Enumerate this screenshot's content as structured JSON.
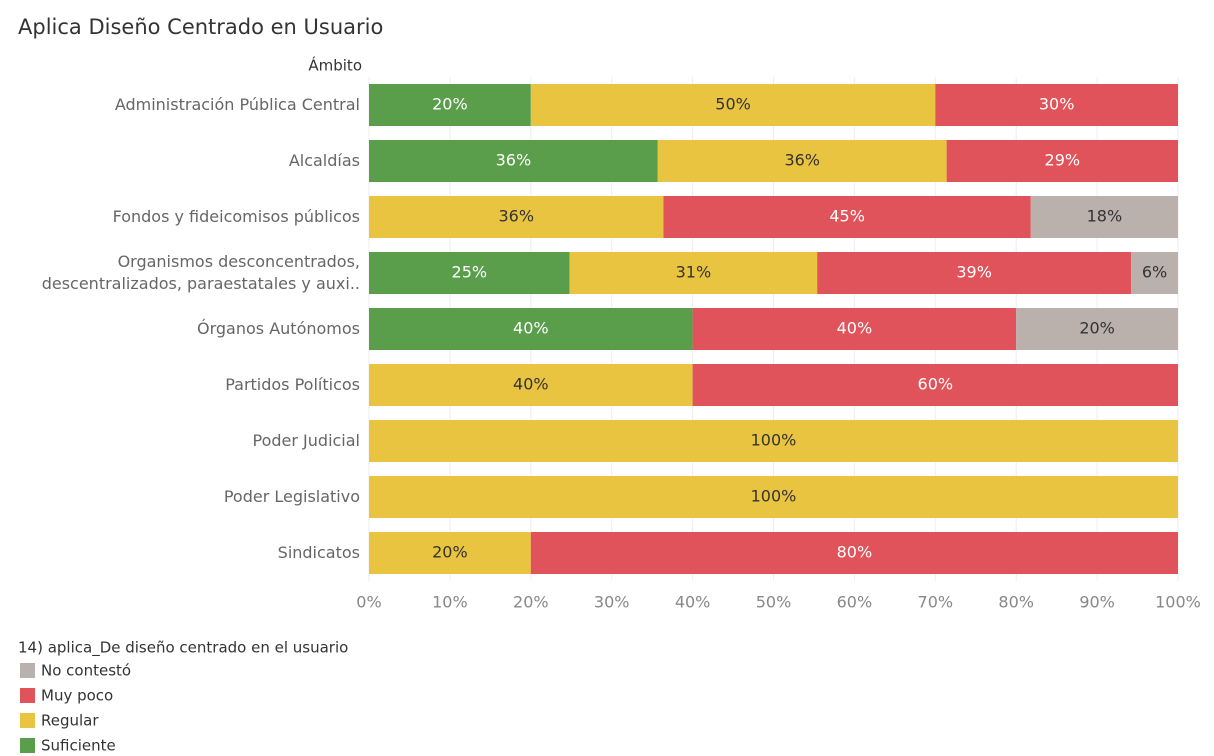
{
  "chart_data": {
    "type": "stacked-bar-horizontal",
    "title": "Aplica Diseño Centrado en Usuario",
    "y_label": "Ámbito",
    "legend_title": "14) aplica_De diseño centrado en el usuario",
    "categories": [
      "Administración Pública Central",
      "Alcaldías",
      "Fondos y fideicomisos públicos",
      "Organismos desconcentrados,\ndescentralizados, paraestatales y auxi..",
      "Órganos Autónomos",
      "Partidos Políticos",
      "Poder Judicial",
      "Poder Legislativo",
      "Sindicatos"
    ],
    "series": [
      {
        "name": "Suficiente",
        "color": "#5a9e4b",
        "label_color": "#ffffff",
        "values": [
          20,
          35.7,
          null,
          24.8,
          40,
          null,
          null,
          null,
          null
        ],
        "value_labels": [
          "20%",
          "36%",
          null,
          "25%",
          "40%",
          null,
          null,
          null,
          null
        ]
      },
      {
        "name": "Regular",
        "color": "#e9c440",
        "label_color": "#333333",
        "values": [
          50,
          35.7,
          36.4,
          30.6,
          null,
          40,
          100,
          100,
          20
        ],
        "value_labels": [
          "50%",
          "36%",
          "36%",
          "31%",
          null,
          "40%",
          "100%",
          "100%",
          "20%"
        ]
      },
      {
        "name": "Muy poco",
        "color": "#e0535a",
        "label_color": "#ffffff",
        "values": [
          30,
          28.6,
          45.4,
          38.8,
          40,
          60,
          null,
          null,
          80
        ],
        "value_labels": [
          "30%",
          "29%",
          "45%",
          "39%",
          "40%",
          "60%",
          null,
          null,
          "80%"
        ]
      },
      {
        "name": "No contestó",
        "color": "#bab0ac",
        "label_color": "#333333",
        "values": [
          null,
          null,
          18.2,
          5.8,
          20,
          null,
          null,
          null,
          null
        ],
        "value_labels": [
          null,
          null,
          "18%",
          "6%",
          "20%",
          null,
          null,
          null,
          null
        ]
      }
    ],
    "legend_order": [
      3,
      2,
      1,
      0
    ],
    "xlim": [
      0,
      100
    ],
    "xticks": [
      {
        "value": 0,
        "label": "0%"
      },
      {
        "value": 10,
        "label": "10%"
      },
      {
        "value": 20,
        "label": "20%"
      },
      {
        "value": 30,
        "label": "30%"
      },
      {
        "value": 40,
        "label": "40%"
      },
      {
        "value": 50,
        "label": "50%"
      },
      {
        "value": 60,
        "label": "60%"
      },
      {
        "value": 70,
        "label": "70%"
      },
      {
        "value": 80,
        "label": "80%"
      },
      {
        "value": 90,
        "label": "90%"
      },
      {
        "value": 100,
        "label": "100%"
      }
    ],
    "grid": true
  }
}
